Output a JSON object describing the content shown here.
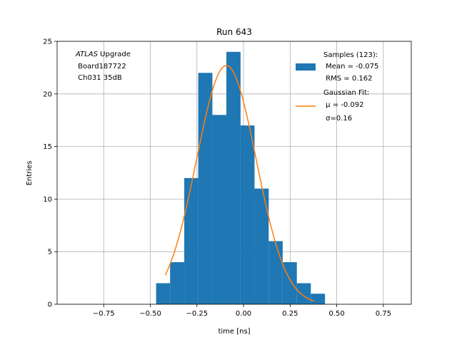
{
  "chart_data": {
    "type": "histogram",
    "title": "Run 643",
    "xlabel": "time [ns]",
    "ylabel": "Entries",
    "xlim": [
      -1.0,
      0.9
    ],
    "ylim": [
      0,
      25
    ],
    "grid": true,
    "xticks": [
      -0.75,
      -0.5,
      -0.25,
      0.0,
      0.25,
      0.5,
      0.75
    ],
    "xtick_labels": [
      "−0.75",
      "−0.50",
      "−0.25",
      "0.00",
      "0.25",
      "0.50",
      "0.75"
    ],
    "yticks": [
      0,
      5,
      10,
      15,
      20,
      25
    ],
    "ytick_labels": [
      "0",
      "5",
      "10",
      "15",
      "20",
      "25"
    ],
    "series": [
      {
        "name": "Samples (123):",
        "kind": "histogram",
        "color": "#1f77b4",
        "bin_edges": [
          -0.469,
          -0.394,
          -0.318,
          -0.243,
          -0.167,
          -0.092,
          -0.016,
          0.059,
          0.135,
          0.21,
          0.286,
          0.361,
          0.437
        ],
        "counts": [
          2,
          4,
          12,
          22,
          18,
          24,
          17,
          11,
          6,
          4,
          2,
          1
        ]
      },
      {
        "name": "Gaussian Fit:",
        "kind": "line",
        "color": "#ff7f0e",
        "mu": -0.092,
        "sigma": 0.16,
        "amplitude": 22.7,
        "x_range": [
          -0.42,
          0.38
        ]
      }
    ],
    "legend": {
      "position": "top-right",
      "entries": [
        {
          "series": 0,
          "lines": [
            "Samples (123):",
            " Mean = -0.075",
            " RMS = 0.162"
          ]
        },
        {
          "series": 1,
          "lines": [
            "Gaussian Fit:",
            " μ = -0.092",
            " σ=0.16"
          ]
        }
      ]
    },
    "annotation": {
      "position": "top-left",
      "experiment": "ATLAS",
      "experiment_suffix": " Upgrade",
      "line2": " Board187722",
      "line3": " Ch031 35dB"
    }
  }
}
